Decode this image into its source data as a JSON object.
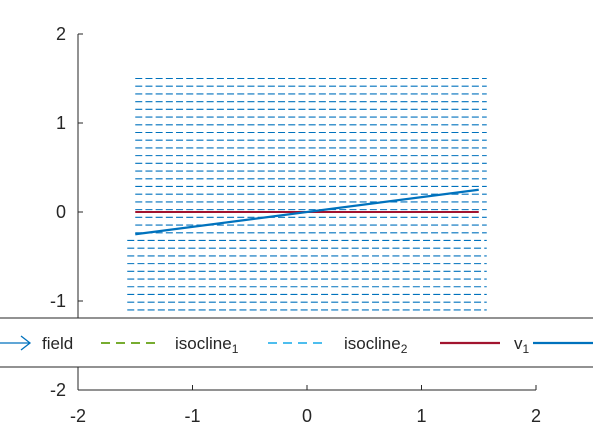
{
  "chart_data": {
    "type": "line",
    "title": "",
    "xlabel": "",
    "ylabel": "",
    "xlim": [
      -2,
      2
    ],
    "ylim": [
      -2,
      2
    ],
    "x_ticks": [
      -2,
      -1,
      0,
      1,
      2
    ],
    "y_ticks": [
      -2,
      -1,
      0,
      1,
      2
    ],
    "x_tick_labels": [
      "-2",
      "-1",
      "0",
      "1",
      "2"
    ],
    "y_tick_labels": [
      "-2",
      "-1",
      "0",
      "1",
      "2"
    ],
    "grid": false,
    "legend": {
      "placement": "bottom",
      "entries": [
        {
          "name": "field",
          "style": "arrow",
          "color": "#0072BD"
        },
        {
          "name": "isocline",
          "sub": "1",
          "style": "dashed",
          "color": "#77AC30"
        },
        {
          "name": "isocline",
          "sub": "2",
          "style": "dashed",
          "color": "#4DBEEE"
        },
        {
          "name": "v",
          "sub": "1",
          "style": "solid",
          "color": "#A2142F"
        },
        {
          "name": "",
          "style": "solid",
          "color": "#0072BD"
        }
      ]
    },
    "field": {
      "color": "#0072BD",
      "direction": "+x",
      "x_range": [
        -1.5,
        1.5
      ],
      "y_range": [
        -1.1,
        1.5
      ],
      "rows": 31
    },
    "series": [
      {
        "name": "v1",
        "color": "#A2142F",
        "x": [
          -1.5,
          1.5
        ],
        "y": [
          0,
          0
        ]
      },
      {
        "color": "#0072BD",
        "x": [
          -1.5,
          1.5
        ],
        "y": [
          -0.25,
          0.25
        ]
      }
    ]
  }
}
